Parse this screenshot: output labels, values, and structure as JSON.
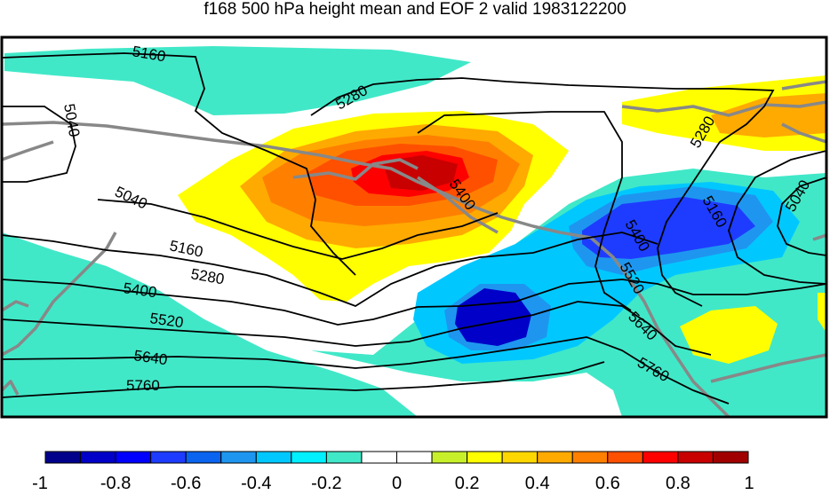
{
  "title": "f168 500 hPa height mean and EOF 2 valid 1983122200",
  "contour_labels": [
    "5160",
    "5040",
    "5280",
    "5040",
    "5160",
    "5280",
    "5400",
    "5520",
    "5640",
    "5760",
    "5400",
    "5280",
    "5160",
    "5040",
    "5400",
    "5520",
    "5640",
    "5760"
  ],
  "colorbar": {
    "colors": [
      "#00008b",
      "#0000c8",
      "#0000ff",
      "#1e3cff",
      "#0a64f0",
      "#1e96f0",
      "#00c8ff",
      "#00f0ff",
      "#40e8c8",
      "#ffffff",
      "#ffffff",
      "#c8f02a",
      "#ffff00",
      "#ffd700",
      "#ffaa00",
      "#ff8000",
      "#ff5000",
      "#ff0000",
      "#c80000",
      "#a00000"
    ],
    "tick_labels": [
      "-1",
      "-0.8",
      "-0.6",
      "-0.4",
      "-0.2",
      "0",
      "0.2",
      "0.4",
      "0.6",
      "0.8",
      "1"
    ]
  }
}
